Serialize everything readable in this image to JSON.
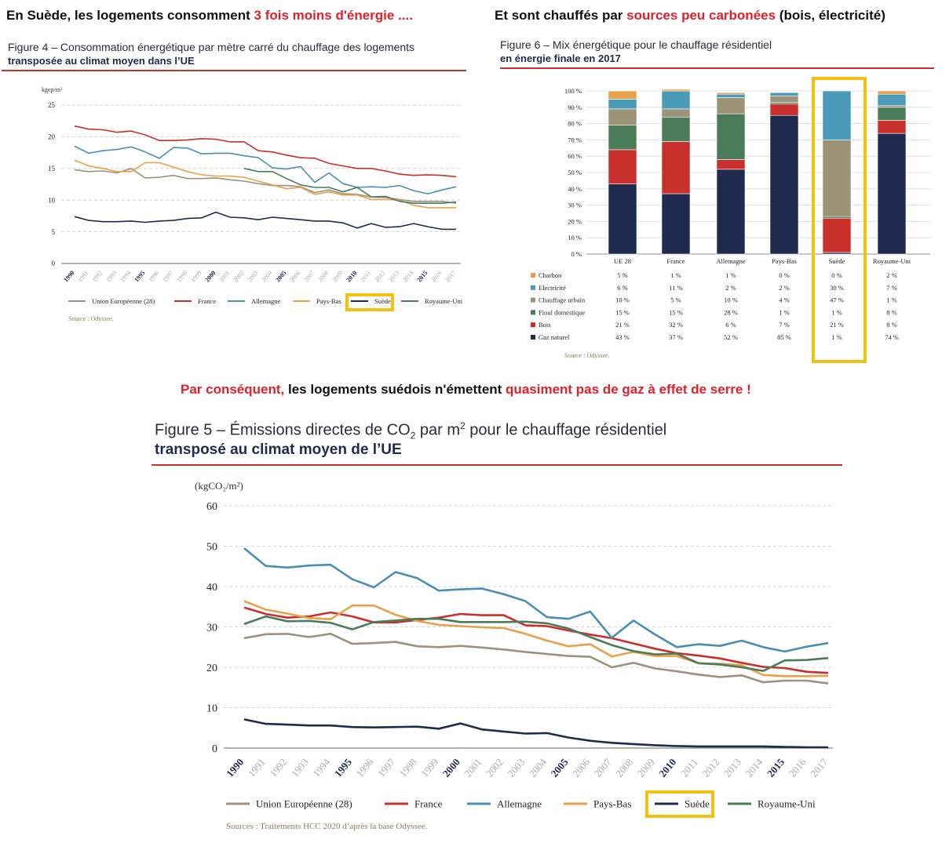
{
  "headlines": {
    "top_left": {
      "a": "En Suède, les logements consomment ",
      "b": "3 fois moins d'énergie ....",
      "c": ""
    },
    "top_right": {
      "a": "Et sont chauffés par ",
      "b": "sources peu carbonées",
      "c": " (bois, électricité)"
    },
    "middle": {
      "a": "Par conséquent,",
      "b": " les logements suédois n'émettent ",
      "c": "quasiment pas de gaz à effet de serre !"
    }
  },
  "fig4": {
    "title": "Figure 4 – Consommation énergétique par mètre carré du chauffage des logements",
    "subtitle": "transposée au climat moyen dans l’UE",
    "source": "Source : Odyssee."
  },
  "fig6": {
    "title": "Figure 6 – Mix énergétique pour le chauffage résidentiel",
    "subtitle": "en énergie finale en 2017",
    "source": "Source : Odyssee."
  },
  "fig5": {
    "title_main": "Figure 5 – Émissions directes de CO",
    "title_sub2": "2",
    "title_rest": " par m",
    "title_sup2": "2",
    "title_end": " pour le chauffage résidentiel",
    "subtitle": "transposé au climat moyen de l’UE",
    "source": "Sources : Traitements HCC 2020 d’après la base Odyssee."
  },
  "colors": {
    "ue": "#9c9180",
    "france": "#c9302c",
    "allemagne": "#4a8db5",
    "paysbas": "#e8a04c",
    "suede": "#1f2a4c",
    "ru": "#4a7c59",
    "highlight": "#f3c10f"
  },
  "chart_data": [
    {
      "id": "fig4",
      "type": "line",
      "ylabel": "kgep/m²",
      "ylim": [
        0,
        25
      ],
      "yticks": [
        0,
        5,
        10,
        15,
        20,
        25
      ],
      "grid": true,
      "legend_position": "bottom",
      "x": [
        1990,
        1991,
        1992,
        1993,
        1994,
        1995,
        1996,
        1997,
        1998,
        1999,
        2000,
        2001,
        2002,
        2003,
        2004,
        2005,
        2006,
        2007,
        2008,
        2009,
        2010,
        2011,
        2012,
        2013,
        2014,
        2015,
        2016,
        2017
      ],
      "x_bold": [
        1990,
        1995,
        2000,
        2005,
        2010,
        2015
      ],
      "series": [
        {
          "name": "Union Européenne (28)",
          "key": "ue",
          "values": [
            14.8,
            14.5,
            14.6,
            14.3,
            15.0,
            13.5,
            13.6,
            13.9,
            13.4,
            13.4,
            13.5,
            13.2,
            13.0,
            12.6,
            12.3,
            12.3,
            12.1,
            11.2,
            11.6,
            11.0,
            10.9,
            10.5,
            10.4,
            10.1,
            9.8,
            9.8,
            9.8,
            9.5
          ]
        },
        {
          "name": "France",
          "key": "france",
          "values": [
            21.7,
            21.2,
            21.1,
            20.7,
            20.9,
            20.3,
            19.4,
            19.4,
            19.5,
            19.7,
            19.6,
            19.2,
            19.2,
            17.8,
            17.6,
            17.1,
            16.7,
            16.6,
            15.8,
            15.4,
            15.0,
            15.0,
            14.6,
            14.1,
            13.9,
            14.0,
            13.9,
            13.7
          ]
        },
        {
          "name": "Allemagne",
          "key": "allemagne",
          "values": [
            18.5,
            17.4,
            17.8,
            18.0,
            18.4,
            17.6,
            16.6,
            18.3,
            18.2,
            17.3,
            17.4,
            17.4,
            17.0,
            16.7,
            15.1,
            14.9,
            15.3,
            12.8,
            14.3,
            12.6,
            12.0,
            12.1,
            12.0,
            12.3,
            11.5,
            11.0,
            11.6,
            12.1
          ]
        },
        {
          "name": "Pays-Bas",
          "key": "paysbas",
          "values": [
            16.3,
            15.4,
            15.0,
            14.5,
            14.5,
            15.9,
            15.9,
            15.2,
            14.5,
            14.0,
            13.8,
            13.8,
            13.6,
            13.0,
            12.4,
            11.8,
            12.0,
            10.9,
            11.3,
            10.8,
            10.8,
            10.1,
            10.1,
            10.0,
            9.2,
            8.8,
            8.8,
            8.8
          ]
        },
        {
          "name": "Suède",
          "key": "suede",
          "values": [
            7.4,
            6.8,
            6.6,
            6.6,
            6.7,
            6.5,
            6.7,
            6.8,
            7.1,
            7.2,
            8.1,
            7.3,
            7.2,
            6.9,
            7.3,
            7.1,
            6.9,
            6.7,
            6.7,
            6.4,
            5.6,
            6.3,
            5.7,
            5.8,
            6.3,
            5.8,
            5.4,
            5.4
          ]
        },
        {
          "name": "Royaume-Uni",
          "key": "ru",
          "values": [
            null,
            null,
            null,
            null,
            null,
            null,
            null,
            null,
            null,
            null,
            null,
            null,
            15.0,
            14.5,
            14.5,
            13.4,
            12.4,
            12.0,
            12.0,
            11.3,
            12.0,
            10.5,
            10.6,
            9.8,
            9.5,
            9.5,
            9.5,
            9.7
          ]
        }
      ]
    },
    {
      "id": "fig6",
      "type": "bar",
      "stacked": true,
      "ylim": [
        0,
        100
      ],
      "yticks": [
        "0 %",
        "10 %",
        "20 %",
        "30 %",
        "40 %",
        "50 %",
        "60 %",
        "70 %",
        "80 %",
        "90 %",
        "100 %"
      ],
      "categories": [
        "UE 28",
        "France",
        "Allemagne",
        "Pays-Bas",
        "Suède",
        "Royaume-Uni"
      ],
      "series": [
        {
          "name": "Gaz naturel",
          "color": "#1f2a4c",
          "values": [
            43,
            37,
            52,
            85,
            1,
            74
          ],
          "labels": [
            "43 %",
            "37 %",
            "52 %",
            "85 %",
            "1 %",
            "74 %"
          ]
        },
        {
          "name": "Bois",
          "color": "#c9302c",
          "values": [
            21,
            32,
            6,
            7,
            21,
            8
          ],
          "labels": [
            "21 %",
            "32 %",
            "6 %",
            "7 %",
            "21 %",
            "8 %"
          ]
        },
        {
          "name": "Fioul domestique",
          "color": "#4a7c59",
          "values": [
            15,
            15,
            28,
            1,
            1,
            8
          ],
          "labels": [
            "15 %",
            "15 %",
            "28 %",
            "1 %",
            "1 %",
            "8 %"
          ]
        },
        {
          "name": "Chauffage urbain",
          "color": "#9c9278",
          "values": [
            10,
            5,
            10,
            4,
            47,
            1
          ],
          "labels": [
            "10 %",
            "5 %",
            "10 %",
            "4 %",
            "47 %",
            "1 %"
          ]
        },
        {
          "name": "Electricité",
          "color": "#4a9bb8",
          "values": [
            6,
            11,
            2,
            2,
            30,
            7
          ],
          "labels": [
            "6 %",
            "11 %",
            "2 %",
            "2 %",
            "30 %",
            "7 %"
          ]
        },
        {
          "name": "Charbon",
          "color": "#e8a04c",
          "values": [
            5,
            1,
            1,
            0,
            0,
            2
          ],
          "labels": [
            "5 %",
            "1 %",
            "1 %",
            "0 %",
            "0 %",
            "2 %"
          ]
        }
      ]
    },
    {
      "id": "fig5",
      "type": "line",
      "ylabel": "(kgCO₂/m²)",
      "ylim": [
        0,
        60
      ],
      "yticks": [
        0,
        10,
        20,
        30,
        40,
        50,
        60
      ],
      "grid": true,
      "legend_position": "bottom",
      "x": [
        1990,
        1991,
        1992,
        1993,
        1994,
        1995,
        1996,
        1997,
        1998,
        1999,
        2000,
        2001,
        2002,
        2003,
        2004,
        2005,
        2006,
        2007,
        2008,
        2009,
        2010,
        2011,
        2012,
        2013,
        2014,
        2015,
        2016,
        2017
      ],
      "x_bold": [
        1990,
        1995,
        2000,
        2005,
        2010,
        2015
      ],
      "series": [
        {
          "name": "Union Européenne (28)",
          "key": "ue",
          "values": [
            27.2,
            28.2,
            28.3,
            27.5,
            28.3,
            25.8,
            26.0,
            26.3,
            25.2,
            25.0,
            25.3,
            24.9,
            24.4,
            23.8,
            23.3,
            22.8,
            22.6,
            20.0,
            21.1,
            19.7,
            19.0,
            18.2,
            17.6,
            18.0,
            16.3,
            16.7,
            16.7,
            16.0
          ]
        },
        {
          "name": "France",
          "key": "france",
          "values": [
            34.8,
            33.2,
            32.3,
            32.6,
            33.6,
            32.6,
            31.1,
            31.1,
            31.7,
            32.3,
            33.2,
            32.9,
            32.9,
            30.4,
            30.2,
            29.1,
            28.1,
            27.2,
            25.9,
            24.6,
            23.5,
            22.9,
            22.2,
            21.1,
            20.1,
            19.8,
            18.9,
            18.6
          ]
        },
        {
          "name": "Allemagne",
          "key": "allemagne",
          "values": [
            49.5,
            45.1,
            44.7,
            45.2,
            45.4,
            41.8,
            39.8,
            43.6,
            42.1,
            39.0,
            39.3,
            39.5,
            38.1,
            36.4,
            32.4,
            32.0,
            33.8,
            27.3,
            31.6,
            28.1,
            25.0,
            25.7,
            25.3,
            26.6,
            25.0,
            23.9,
            25.1,
            26.0
          ]
        },
        {
          "name": "Pays-Bas",
          "key": "paysbas",
          "values": [
            36.4,
            34.3,
            33.3,
            32.2,
            31.9,
            35.3,
            35.3,
            33.0,
            31.5,
            30.5,
            30.2,
            29.9,
            29.7,
            28.3,
            26.6,
            25.2,
            25.7,
            22.7,
            23.8,
            22.8,
            22.8,
            21.0,
            20.9,
            20.5,
            18.1,
            17.8,
            17.8,
            17.9
          ]
        },
        {
          "name": "Suède",
          "key": "suede",
          "values": [
            7.1,
            6.0,
            5.8,
            5.6,
            5.6,
            5.2,
            5.1,
            5.2,
            5.3,
            4.8,
            6.1,
            4.6,
            4.1,
            3.6,
            3.7,
            2.6,
            1.8,
            1.3,
            1.0,
            0.7,
            0.5,
            0.4,
            0.4,
            0.4,
            0.4,
            0.3,
            0.2,
            0.2
          ]
        },
        {
          "name": "Royaume-Uni",
          "key": "ru",
          "values": [
            30.7,
            32.6,
            31.4,
            31.5,
            31.0,
            29.4,
            31.2,
            31.6,
            32.0,
            32.0,
            31.2,
            31.2,
            31.2,
            31.3,
            30.9,
            29.6,
            27.5,
            25.5,
            24.0,
            23.2,
            23.4,
            21.0,
            20.7,
            20.0,
            19.1,
            21.7,
            21.8,
            22.3
          ]
        }
      ]
    }
  ]
}
